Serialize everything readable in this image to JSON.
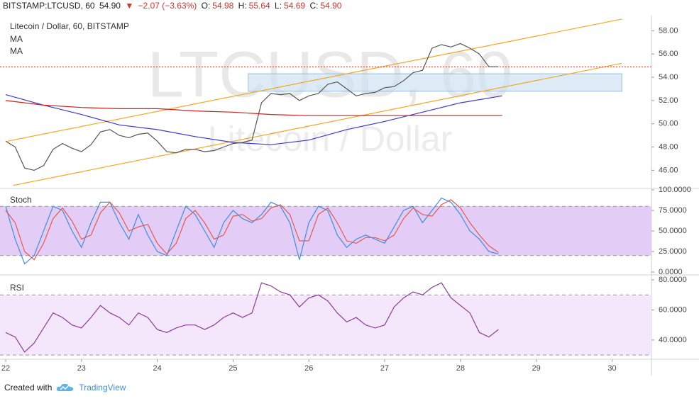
{
  "header": {
    "symbol": "BITSTAMP:LTCUSD, 60",
    "last": "54.90",
    "arrow": "▼",
    "change": "−2.07 (−3.63%)",
    "ohlc": [
      {
        "key": "O:",
        "value": "54.98"
      },
      {
        "key": "H:",
        "value": "55.64"
      },
      {
        "key": "L:",
        "value": "54.69"
      },
      {
        "key": "C:",
        "value": "54.90"
      }
    ]
  },
  "chart_data": [
    {
      "type": "line",
      "title": "Litecoin / Dollar, 60, BITSTAMP",
      "watermark": [
        "LTCUSD, 60",
        "Litecoin / Dollar"
      ],
      "x": [
        22,
        22.125,
        22.25,
        22.375,
        22.5,
        22.625,
        22.75,
        22.875,
        23,
        23.125,
        23.25,
        23.375,
        23.5,
        23.625,
        23.75,
        23.875,
        24,
        24.125,
        24.25,
        24.375,
        24.5,
        24.625,
        24.75,
        24.875,
        25,
        25.125,
        25.25,
        25.375,
        25.5,
        25.625,
        25.75,
        25.875,
        26,
        26.125,
        26.25,
        26.375,
        26.5,
        26.625,
        26.75,
        26.875,
        27,
        27.125,
        27.25,
        27.375,
        27.5,
        27.625,
        27.75,
        27.875,
        28,
        28.125,
        28.25,
        28.375,
        28.5
      ],
      "series": [
        {
          "color": "#555555",
          "values": [
            48.5,
            48,
            46.2,
            46,
            46.4,
            47.8,
            48.3,
            47.9,
            47.6,
            48.2,
            49.3,
            49.5,
            49,
            48.8,
            49.1,
            49.2,
            48.5,
            47.6,
            47.5,
            47.8,
            47.8,
            47.6,
            47.7,
            48,
            48.3,
            48.4,
            48.6,
            51.8,
            52.6,
            52.5,
            52.6,
            52,
            52.4,
            52.6,
            53.4,
            53.6,
            53,
            52.4,
            52.6,
            52.7,
            53.1,
            53.2,
            53.7,
            54.4,
            54.6,
            56.5,
            56.8,
            56.6,
            56.9,
            56.5,
            56,
            54.9,
            54.9
          ]
        }
      ],
      "ma": [
        {
          "name": "MA",
          "color": "#3a3acd",
          "x": [
            22,
            22.5,
            23,
            23.5,
            24,
            24.5,
            25,
            25.5,
            26,
            26.5,
            27,
            27.5,
            28,
            28.55
          ],
          "values": [
            52.5,
            51.6,
            50.8,
            49.9,
            49.5,
            48.9,
            48.4,
            48.2,
            48.6,
            49.5,
            50.2,
            51,
            51.8,
            52.4
          ]
        },
        {
          "name": "MA",
          "color": "#cc2222",
          "x": [
            22,
            22.5,
            23,
            23.5,
            24,
            24.5,
            25,
            25.5,
            26,
            26.5,
            27,
            27.5,
            28,
            28.55
          ],
          "values": [
            52,
            51.6,
            51.4,
            51.3,
            51.3,
            51.1,
            51,
            50.8,
            50.7,
            50.7,
            50.7,
            50.7,
            50.7,
            50.7
          ]
        }
      ],
      "channel": {
        "color": "#f5a623",
        "lines": [
          {
            "x": [
              22.02,
              30.13
            ],
            "y": [
              48.5,
              59
            ]
          },
          {
            "x": [
              22.1,
              30.13
            ],
            "y": [
              44.7,
              55.2
            ]
          }
        ]
      },
      "zone": {
        "x": [
          25.2,
          30.13
        ],
        "y": [
          52.8,
          54.3
        ],
        "color": "#cfe2f3"
      },
      "last_price_line": 54.9,
      "xlim": [
        21.925,
        30.52
      ],
      "ylim": [
        44.5,
        59.3
      ],
      "yticks": [
        {
          "value": 46,
          "label": "46.00"
        },
        {
          "value": 48,
          "label": "48.00"
        },
        {
          "value": 50,
          "label": "50.00"
        },
        {
          "value": 52,
          "label": "52.00"
        },
        {
          "value": 54,
          "label": "54.00"
        },
        {
          "value": 56,
          "label": "56.00"
        },
        {
          "value": 58,
          "label": "58.00"
        }
      ]
    },
    {
      "type": "line",
      "title": "Stoch",
      "x": [
        22,
        22.125,
        22.25,
        22.375,
        22.5,
        22.625,
        22.75,
        22.875,
        23,
        23.125,
        23.25,
        23.375,
        23.5,
        23.625,
        23.75,
        23.875,
        24,
        24.125,
        24.25,
        24.375,
        24.5,
        24.625,
        24.75,
        24.875,
        25,
        25.125,
        25.25,
        25.375,
        25.5,
        25.625,
        25.75,
        25.875,
        26,
        26.125,
        26.25,
        26.375,
        26.5,
        26.625,
        26.75,
        26.875,
        27,
        27.125,
        27.25,
        27.375,
        27.5,
        27.625,
        27.75,
        27.875,
        28,
        28.125,
        28.25,
        28.375,
        28.5
      ],
      "series": [
        {
          "color": "#3d8fe0",
          "values": [
            80,
            40,
            10,
            20,
            50,
            80,
            75,
            50,
            30,
            60,
            85,
            85,
            60,
            40,
            70,
            45,
            25,
            20,
            50,
            80,
            70,
            50,
            30,
            60,
            75,
            65,
            60,
            70,
            85,
            80,
            60,
            15,
            60,
            80,
            75,
            45,
            30,
            40,
            45,
            40,
            35,
            55,
            75,
            80,
            60,
            75,
            90,
            85,
            70,
            50,
            40,
            25,
            22
          ]
        },
        {
          "color": "#e8564f",
          "values": [
            75,
            60,
            25,
            15,
            35,
            65,
            78,
            62,
            40,
            45,
            72,
            85,
            72,
            50,
            55,
            58,
            35,
            22,
            35,
            65,
            75,
            60,
            40,
            45,
            68,
            70,
            62,
            65,
            78,
            82,
            70,
            38,
            38,
            70,
            78,
            60,
            38,
            35,
            42,
            42,
            38,
            45,
            65,
            78,
            70,
            68,
            82,
            88,
            78,
            60,
            45,
            32,
            24
          ]
        }
      ],
      "band": [
        20,
        80
      ],
      "band_color": "#e3cdf7",
      "xlim": [
        21.925,
        30.52
      ],
      "ylim": [
        0,
        100
      ],
      "yticks": [
        {
          "value": 0,
          "label": "0.0000"
        },
        {
          "value": 25,
          "label": "25.0000"
        },
        {
          "value": 50,
          "label": "50.0000"
        },
        {
          "value": 75,
          "label": "75.0000"
        },
        {
          "value": 100,
          "label": "100.0000"
        }
      ]
    },
    {
      "type": "line",
      "title": "RSI",
      "x": [
        22,
        22.125,
        22.25,
        22.375,
        22.5,
        22.625,
        22.75,
        22.875,
        23,
        23.125,
        23.25,
        23.375,
        23.5,
        23.625,
        23.75,
        23.875,
        24,
        24.125,
        24.25,
        24.375,
        24.5,
        24.625,
        24.75,
        24.875,
        25,
        25.125,
        25.25,
        25.375,
        25.5,
        25.625,
        25.75,
        25.875,
        26,
        26.125,
        26.25,
        26.375,
        26.5,
        26.625,
        26.75,
        26.875,
        27,
        27.125,
        27.25,
        27.375,
        27.5,
        27.625,
        27.75,
        27.875,
        28,
        28.125,
        28.25,
        28.375,
        28.5
      ],
      "series": [
        {
          "color": "#8e3a9a",
          "values": [
            45,
            42,
            32,
            38,
            48,
            58,
            55,
            50,
            48,
            55,
            63,
            58,
            55,
            50,
            58,
            55,
            47,
            45,
            48,
            50,
            50,
            47,
            50,
            55,
            58,
            55,
            58,
            78,
            76,
            72,
            70,
            62,
            68,
            70,
            66,
            58,
            52,
            55,
            50,
            48,
            50,
            62,
            68,
            72,
            70,
            75,
            78,
            68,
            63,
            58,
            45,
            42,
            47
          ]
        }
      ],
      "band": [
        30,
        70
      ],
      "band_color": "#f4e6fb",
      "xlim": [
        21.925,
        30.52
      ],
      "ylim": [
        28.2,
        81.4
      ],
      "yticks": [
        {
          "value": 40,
          "label": "40.0000"
        },
        {
          "value": 60,
          "label": "60.0000"
        },
        {
          "value": 80,
          "label": "80.0000"
        }
      ],
      "xticks": [
        22,
        23,
        24,
        25,
        26,
        27,
        28,
        29,
        30
      ]
    }
  ],
  "footer": {
    "created": "Created with",
    "brand": "TradingView"
  }
}
